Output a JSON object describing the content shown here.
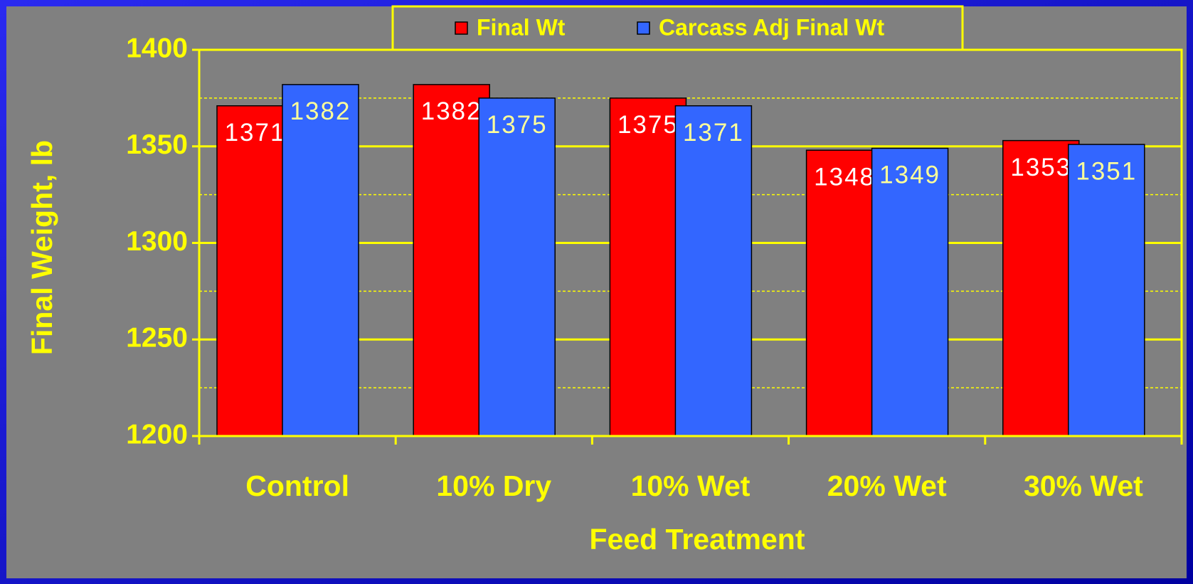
{
  "chart_data": {
    "type": "bar",
    "xlabel": "Feed Treatment",
    "ylabel": "Final Weight, lb",
    "categories": [
      "Control",
      "10% Dry",
      "10% Wet",
      "20% Wet",
      "30% Wet"
    ],
    "series": [
      {
        "name": "Final Wt",
        "color": "#ff0000",
        "values": [
          1371,
          1382,
          1375,
          1348,
          1353
        ]
      },
      {
        "name": "Carcass Adj Final Wt",
        "color": "#3366ff",
        "values": [
          1382,
          1375,
          1371,
          1349,
          1351
        ]
      }
    ],
    "ylim": [
      1200,
      1400
    ],
    "yticks": [
      1200,
      1250,
      1300,
      1350,
      1400
    ],
    "minor_yticks": [
      1225,
      1275,
      1325,
      1375
    ],
    "grid": true,
    "legend": "top"
  }
}
